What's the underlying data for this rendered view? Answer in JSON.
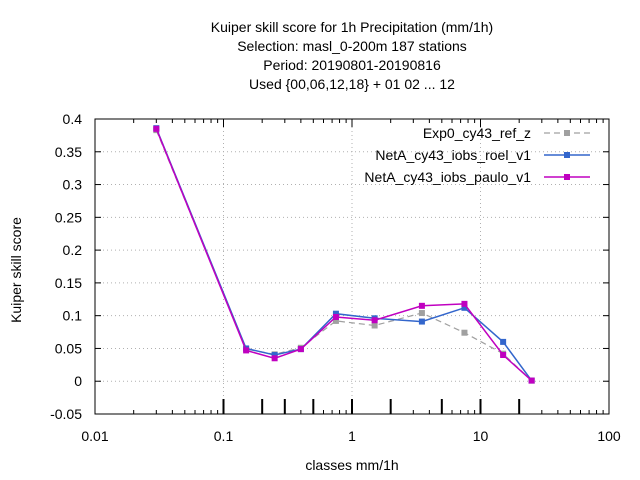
{
  "chart_data": {
    "type": "line",
    "title_lines": [
      "Kuiper skill score  for 1h Precipitation (mm/1h)",
      "Selection: masl_0-200m    187 stations",
      "Period: 20190801-20190816",
      "Used {00,06,12,18} + 01 02 ... 12"
    ],
    "xlabel": "classes mm/1h",
    "ylabel": "Kuiper skill score",
    "xscale": "log",
    "xlim": [
      0.01,
      100
    ],
    "ylim": [
      -0.05,
      0.4
    ],
    "x_ticks": [
      0.01,
      0.1,
      1,
      10,
      100
    ],
    "x_tick_labels": [
      "0.01",
      "0.1",
      "1",
      "10",
      "100"
    ],
    "y_ticks": [
      -0.05,
      0,
      0.05,
      0.1,
      0.15,
      0.2,
      0.25,
      0.3,
      0.35,
      0.4
    ],
    "y_tick_labels": [
      "-0.05",
      "0",
      "0.05",
      "0.1",
      "0.15",
      "0.2",
      "0.25",
      "0.3",
      "0.35",
      "0.4"
    ],
    "class_markers": [
      0.1,
      0.2,
      0.3,
      0.5,
      1,
      2,
      5,
      10,
      20
    ],
    "grid": true,
    "legend_position": "top-right",
    "x": [
      0.03,
      0.15,
      0.25,
      0.4,
      0.75,
      1.5,
      3.5,
      7.5,
      15,
      25
    ],
    "series": [
      {
        "name": "Exp0_cy43_ref_z",
        "color": "#a0a0a0",
        "dashed": true,
        "values": [
          0.383,
          0.049,
          0.041,
          0.051,
          0.092,
          0.085,
          0.104,
          0.074,
          0.042,
          0.001
        ]
      },
      {
        "name": "NetA_cy43_iobs_roel_v1",
        "color": "#3366cc",
        "dashed": false,
        "values": [
          0.386,
          0.05,
          0.04,
          0.049,
          0.103,
          0.096,
          0.091,
          0.112,
          0.06,
          0.001
        ]
      },
      {
        "name": "NetA_cy43_iobs_paulo_v1",
        "color": "#c000c0",
        "dashed": false,
        "values": [
          0.385,
          0.047,
          0.035,
          0.049,
          0.098,
          0.093,
          0.115,
          0.118,
          0.04,
          0.001
        ]
      }
    ]
  }
}
